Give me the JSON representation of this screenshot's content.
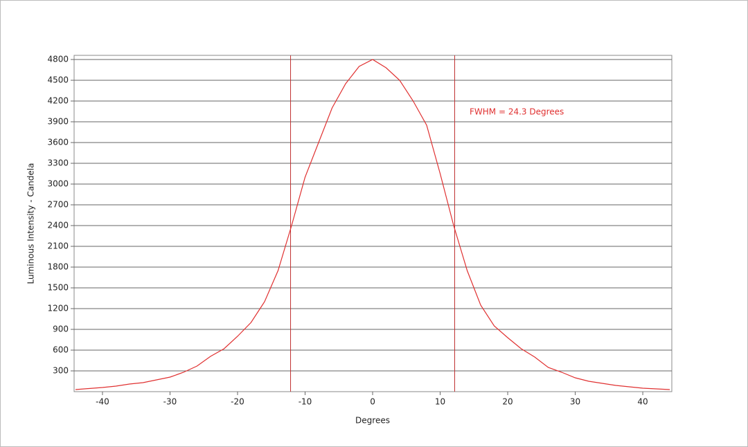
{
  "chart_data": {
    "type": "line",
    "x_label": "Degrees",
    "y_label": "Luminous Intensity - Candela",
    "annotation": "FWHM = 24.3 Degrees",
    "x": [
      -44,
      -42,
      -40,
      -38,
      -36,
      -34,
      -32,
      -30,
      -28,
      -26,
      -24,
      -22,
      -20,
      -18,
      -16,
      -14,
      -12,
      -10,
      -8,
      -6,
      -4,
      -2,
      0,
      2,
      4,
      6,
      8,
      10,
      12,
      14,
      16,
      18,
      20,
      22,
      24,
      26,
      28,
      30,
      32,
      34,
      36,
      38,
      40,
      42,
      44
    ],
    "series": [
      {
        "color": "#e03030",
        "values": [
          30,
          45,
          60,
          80,
          110,
          130,
          170,
          210,
          280,
          370,
          510,
          620,
          800,
          1000,
          1300,
          1750,
          2400,
          3100,
          3600,
          4100,
          4450,
          4700,
          4800,
          4680,
          4500,
          4200,
          3850,
          3150,
          2400,
          1750,
          1250,
          950,
          780,
          620,
          500,
          350,
          280,
          200,
          150,
          120,
          90,
          70,
          50,
          40,
          30
        ]
      }
    ],
    "vlines": [
      -12.15,
      12.15
    ],
    "vline_color": "#c03030",
    "xlim": [
      -44.2,
      44.3
    ],
    "ylim": [
      0,
      4860
    ],
    "xticks": [
      -40,
      -30,
      -20,
      -10,
      0,
      10,
      20,
      30,
      40
    ],
    "yticks": [
      300,
      600,
      900,
      1200,
      1500,
      1800,
      2100,
      2400,
      2700,
      3000,
      3300,
      3600,
      3900,
      4200,
      4500,
      4800
    ],
    "grid": true
  }
}
